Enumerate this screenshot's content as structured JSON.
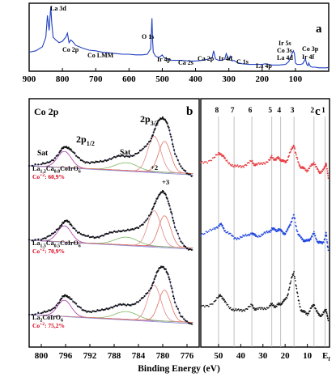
{
  "figure": {
    "xlabel": "Binding Energy (eV)"
  },
  "chart_data": [
    {
      "panel": "a",
      "type": "line",
      "xlim": [
        900,
        0
      ],
      "x_ticks": [
        900,
        800,
        700,
        600,
        500,
        400,
        300,
        200,
        100
      ],
      "color": "#1f3fbf",
      "series": [
        {
          "x": [
            900,
            880,
            860,
            850,
            845,
            840,
            835,
            832,
            828,
            820,
            810,
            800,
            790,
            785,
            780,
            775,
            770,
            760,
            740,
            720,
            700,
            680,
            660,
            640,
            620,
            600,
            580,
            560,
            545,
            535,
            531,
            529,
            527,
            520,
            510,
            500,
            495,
            480,
            470,
            460,
            440,
            420,
            400,
            380,
            360,
            350,
            346,
            340,
            330,
            320,
            312,
            308,
            300,
            296,
            290,
            285,
            280,
            270,
            260,
            240,
            220,
            200,
            190,
            180,
            170,
            160,
            150,
            130,
            120,
            110,
            106,
            103,
            100,
            95,
            85,
            78,
            70,
            66,
            62,
            60,
            55,
            50,
            40,
            30,
            20,
            10,
            5,
            0
          ],
          "y": [
            0.28,
            0.3,
            0.36,
            0.5,
            0.82,
            0.6,
            0.95,
            0.7,
            0.5,
            0.46,
            0.42,
            0.44,
            0.5,
            0.56,
            0.42,
            0.46,
            0.44,
            0.38,
            0.34,
            0.31,
            0.3,
            0.28,
            0.27,
            0.26,
            0.25,
            0.25,
            0.24,
            0.24,
            0.25,
            0.33,
            0.78,
            0.45,
            0.28,
            0.22,
            0.2,
            0.24,
            0.2,
            0.17,
            0.16,
            0.16,
            0.16,
            0.15,
            0.15,
            0.16,
            0.18,
            0.2,
            0.3,
            0.18,
            0.16,
            0.16,
            0.18,
            0.26,
            0.17,
            0.22,
            0.15,
            0.16,
            0.14,
            0.12,
            0.11,
            0.1,
            0.1,
            0.1,
            0.11,
            0.1,
            0.09,
            0.09,
            0.09,
            0.1,
            0.14,
            0.26,
            0.3,
            0.26,
            0.12,
            0.1,
            0.1,
            0.11,
            0.18,
            0.1,
            0.08,
            0.12,
            0.07,
            0.06,
            0.06,
            0.05,
            0.05,
            0.05,
            0.05,
            0.06
          ]
        }
      ],
      "annotations": [
        "La 3d",
        "Co 2p",
        "Co LMM",
        "O 1s",
        "Ir 4p",
        "Ca 2s",
        "Ca 2p",
        "Ir 4d",
        "C 1s",
        "La 4p",
        "Ir 5s",
        "Co 3s",
        "La 4d",
        "Co 3p",
        "Ir 4f"
      ]
    },
    {
      "panel": "b",
      "type": "line",
      "title": "Co 2p",
      "xlim": [
        802,
        774
      ],
      "x_ticks": [
        800,
        796,
        792,
        788,
        784,
        780,
        776
      ],
      "peak_labels": [
        "2p",
        "1/2",
        "2p",
        "3/2",
        "Sat",
        "Sat",
        "+2",
        "+3"
      ],
      "samples": [
        {
          "name": "La",
          "name_sub": "1.2",
          "name_mid": "Ca",
          "name_sub2": "0.8",
          "name_end": "CoIrO",
          "name_sub3": "6",
          "co_label": "Co",
          "co_sup": "+2",
          "co_value": ": 60,9%",
          "offset": 0.62,
          "x": [
            802,
            800,
            799,
            798,
            797,
            796.5,
            796,
            795.5,
            795,
            794,
            793,
            792,
            791,
            790,
            789,
            788,
            787,
            786,
            785,
            784,
            783,
            782,
            781.5,
            781,
            780.5,
            780,
            779.5,
            779,
            778.5,
            778,
            777,
            776,
            775
          ],
          "y": [
            0.2,
            0.22,
            0.25,
            0.3,
            0.4,
            0.47,
            0.5,
            0.48,
            0.43,
            0.33,
            0.27,
            0.25,
            0.25,
            0.27,
            0.3,
            0.33,
            0.35,
            0.35,
            0.36,
            0.4,
            0.48,
            0.6,
            0.72,
            0.84,
            0.92,
            0.95,
            0.9,
            0.78,
            0.6,
            0.4,
            0.18,
            0.08,
            0.04
          ]
        },
        {
          "name": "La",
          "name_sub": "1.5",
          "name_mid": "Ca",
          "name_sub2": "0.5",
          "name_end": "CoIrO",
          "name_sub3": "6",
          "co_label": "Co",
          "co_sup": "+2",
          "co_value": ": 70,9%",
          "offset": 0.31,
          "x": [
            802,
            800,
            799,
            798,
            797,
            796.5,
            796,
            795.5,
            795,
            794,
            793,
            792,
            791,
            790,
            789,
            788,
            787,
            786,
            785,
            784,
            783,
            782,
            781.5,
            781,
            780.5,
            780,
            779.5,
            779,
            778.5,
            778,
            777,
            776,
            775
          ],
          "y": [
            0.2,
            0.22,
            0.25,
            0.3,
            0.4,
            0.47,
            0.5,
            0.48,
            0.43,
            0.33,
            0.27,
            0.25,
            0.25,
            0.27,
            0.3,
            0.33,
            0.35,
            0.35,
            0.36,
            0.4,
            0.48,
            0.6,
            0.72,
            0.84,
            0.92,
            0.95,
            0.9,
            0.78,
            0.6,
            0.4,
            0.18,
            0.08,
            0.04
          ]
        },
        {
          "name": "La",
          "name_sub": "2",
          "name_mid": "",
          "name_sub2": "",
          "name_end": "CoIrO",
          "name_sub3": "6",
          "co_label": "Co",
          "co_sup": "+2",
          "co_value": ": 75,2%",
          "offset": 0.0,
          "x": [
            802,
            800,
            799,
            798,
            797,
            796.5,
            796,
            795.5,
            795,
            794,
            793,
            792,
            791,
            790,
            789,
            788,
            787,
            786,
            785,
            784,
            783,
            782,
            781.5,
            781,
            780.5,
            780,
            779.5,
            779,
            778.5,
            778,
            777,
            776,
            775
          ],
          "y": [
            0.2,
            0.22,
            0.25,
            0.3,
            0.4,
            0.47,
            0.5,
            0.48,
            0.43,
            0.33,
            0.27,
            0.25,
            0.25,
            0.27,
            0.3,
            0.33,
            0.35,
            0.35,
            0.36,
            0.4,
            0.48,
            0.6,
            0.72,
            0.84,
            0.92,
            0.95,
            0.9,
            0.78,
            0.6,
            0.4,
            0.18,
            0.08,
            0.04
          ]
        }
      ]
    },
    {
      "panel": "c",
      "type": "scatter",
      "xlim": [
        58,
        0
      ],
      "x_ticks": [
        50,
        40,
        30,
        20,
        10
      ],
      "x_ticks_text": [
        "50",
        "40",
        "30",
        "20",
        "10",
        "E",
        "f"
      ],
      "reference_lines": [
        50,
        43,
        35,
        26,
        22,
        16,
        7,
        2
      ],
      "reference_labels": [
        "8",
        "7",
        "6",
        "5",
        "4",
        "3",
        "2",
        "1"
      ],
      "series": [
        {
          "color": "#e8383d",
          "offset": 0.66,
          "x": [
            58,
            55,
            52,
            50,
            49,
            48,
            47,
            45,
            43,
            41,
            39,
            37,
            35,
            34,
            33,
            31,
            29,
            27,
            26,
            25,
            24,
            23,
            22,
            21,
            20,
            19,
            18,
            17,
            16,
            15,
            14,
            13,
            12,
            11,
            10,
            9,
            8,
            7,
            6,
            5,
            4,
            3,
            2,
            1.5,
            1,
            0.5
          ],
          "y": [
            0.24,
            0.26,
            0.3,
            0.34,
            0.35,
            0.32,
            0.28,
            0.24,
            0.2,
            0.2,
            0.21,
            0.23,
            0.26,
            0.23,
            0.22,
            0.23,
            0.25,
            0.27,
            0.31,
            0.29,
            0.28,
            0.3,
            0.28,
            0.26,
            0.25,
            0.28,
            0.34,
            0.4,
            0.45,
            0.32,
            0.24,
            0.2,
            0.18,
            0.17,
            0.16,
            0.18,
            0.22,
            0.25,
            0.19,
            0.15,
            0.14,
            0.15,
            0.2,
            0.25,
            0.14,
            0.06
          ]
        },
        {
          "color": "#1f45e0",
          "offset": 0.33,
          "x": [
            58,
            55,
            52,
            50,
            49,
            48,
            47,
            45,
            43,
            41,
            39,
            37,
            35,
            34,
            33,
            31,
            29,
            27,
            26,
            25,
            24,
            23,
            22,
            21,
            20,
            19,
            18,
            17,
            16,
            15,
            14,
            13,
            12,
            11,
            10,
            9,
            8,
            7,
            6,
            5,
            4,
            3,
            2,
            1.5,
            1,
            0.5
          ],
          "y": [
            0.24,
            0.26,
            0.3,
            0.34,
            0.35,
            0.32,
            0.28,
            0.24,
            0.2,
            0.2,
            0.21,
            0.23,
            0.26,
            0.23,
            0.22,
            0.23,
            0.25,
            0.27,
            0.31,
            0.29,
            0.28,
            0.3,
            0.28,
            0.26,
            0.25,
            0.28,
            0.34,
            0.4,
            0.45,
            0.32,
            0.24,
            0.2,
            0.18,
            0.17,
            0.16,
            0.18,
            0.22,
            0.25,
            0.19,
            0.15,
            0.14,
            0.15,
            0.2,
            0.25,
            0.14,
            0.06
          ]
        },
        {
          "color": "#1a1a1a",
          "offset": 0.0,
          "x": [
            58,
            55,
            52,
            50,
            49,
            48,
            47,
            45,
            43,
            41,
            39,
            37,
            35,
            34,
            33,
            31,
            29,
            27,
            26,
            25,
            24,
            23,
            22,
            21,
            20,
            19,
            18,
            17,
            16,
            15,
            14,
            13,
            12,
            11,
            10,
            9,
            8,
            7,
            6,
            5,
            4,
            3,
            2,
            1.5,
            1,
            0.5
          ],
          "y": [
            0.22,
            0.24,
            0.28,
            0.33,
            0.36,
            0.32,
            0.27,
            0.22,
            0.19,
            0.18,
            0.19,
            0.21,
            0.24,
            0.21,
            0.2,
            0.2,
            0.21,
            0.23,
            0.25,
            0.24,
            0.23,
            0.25,
            0.26,
            0.28,
            0.3,
            0.35,
            0.45,
            0.55,
            0.62,
            0.45,
            0.3,
            0.2,
            0.17,
            0.16,
            0.15,
            0.17,
            0.22,
            0.26,
            0.18,
            0.14,
            0.13,
            0.14,
            0.18,
            0.2,
            0.12,
            0.05
          ]
        }
      ]
    }
  ],
  "colors": {
    "survey": "#1f3fbf",
    "data_points": "#111111",
    "envelope": "#8a8acf",
    "comp_2p12": "#a83aa8",
    "comp_sat1": "#7ab85a",
    "comp_sat2": "#e08a8a",
    "comp_main3": "#e07060",
    "co_fraction": "#d0021b",
    "gridline": "#b0b0b0"
  }
}
